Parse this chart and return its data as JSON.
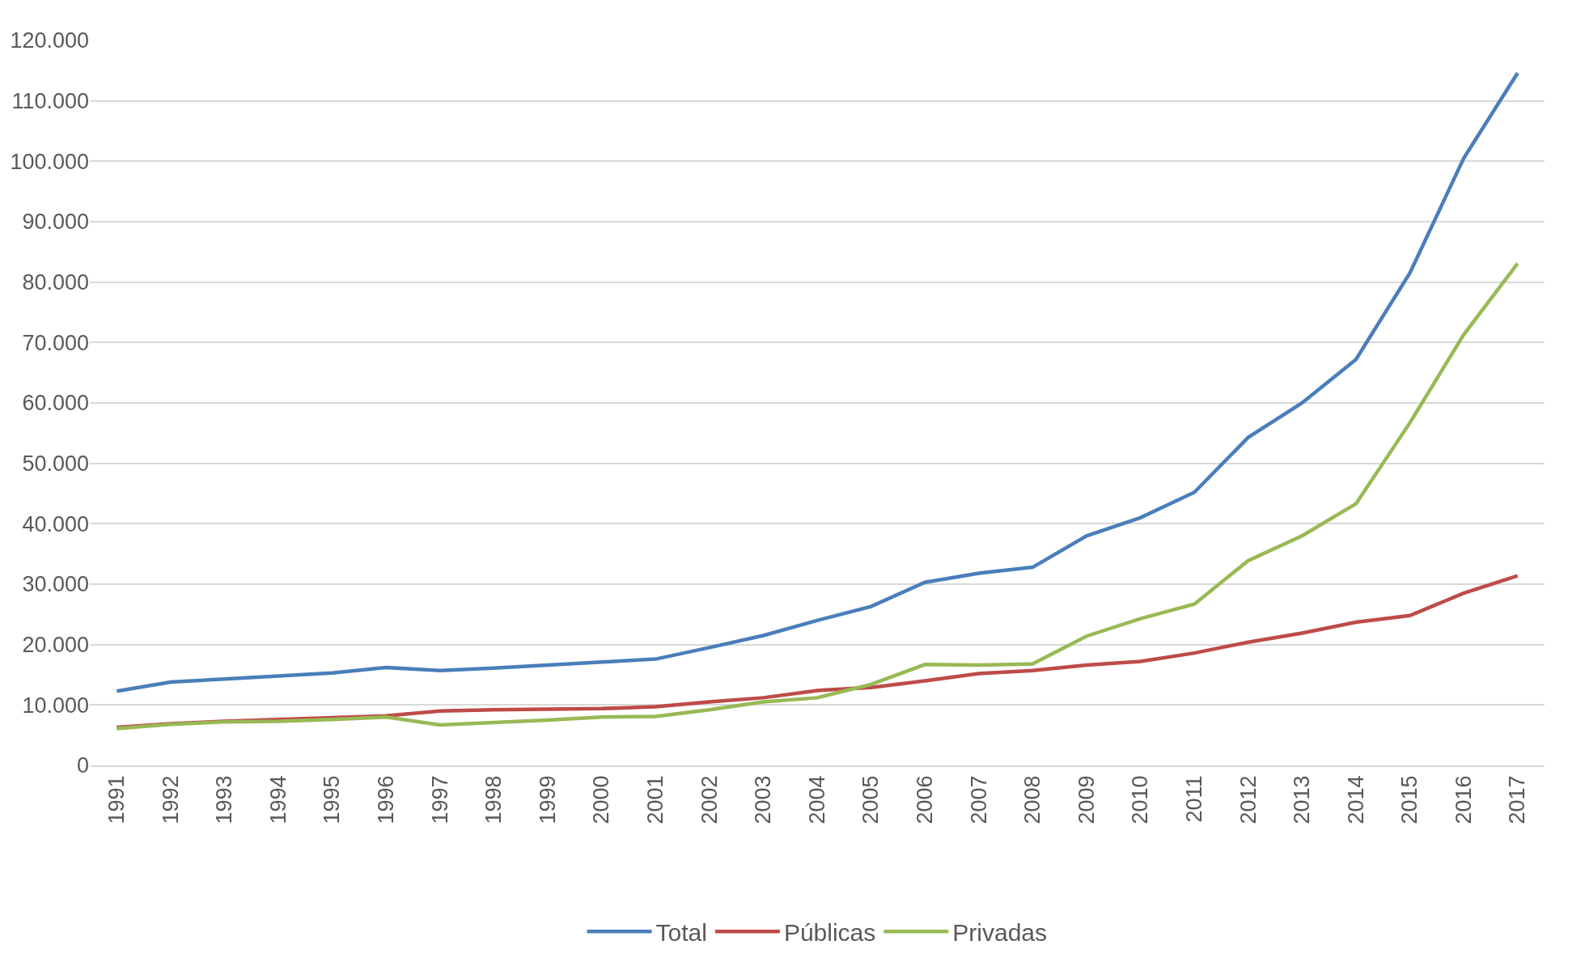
{
  "chart_data": {
    "type": "line",
    "categories": [
      "1991",
      "1992",
      "1993",
      "1994",
      "1995",
      "1996",
      "1997",
      "1998",
      "1999",
      "2000",
      "2001",
      "2002",
      "2003",
      "2004",
      "2005",
      "2006",
      "2007",
      "2008",
      "2009",
      "2010",
      "2011",
      "2012",
      "2013",
      "2014",
      "2015",
      "2016",
      "2017"
    ],
    "series": [
      {
        "name": "Total",
        "color": "#4a7ebb",
        "values": [
          12300,
          13800,
          14300,
          14800,
          15300,
          16200,
          15700,
          16100,
          16600,
          17100,
          17600,
          19500,
          21500,
          24000,
          26300,
          30300,
          31800,
          32800,
          38000,
          41000,
          45200,
          54300,
          60000,
          67200,
          81500,
          100500,
          114600
        ]
      },
      {
        "name": "Públicas",
        "color": "#be4b48",
        "values": [
          6300,
          6900,
          7300,
          7600,
          7900,
          8200,
          9000,
          9200,
          9300,
          9400,
          9700,
          10500,
          11200,
          12400,
          12900,
          14000,
          15200,
          15700,
          16600,
          17200,
          18600,
          20400,
          21900,
          23700,
          24800,
          28500,
          31400
        ]
      },
      {
        "name": "Privadas",
        "color": "#98b954",
        "values": [
          6100,
          6800,
          7200,
          7300,
          7600,
          8000,
          6700,
          7100,
          7500,
          8000,
          8100,
          9200,
          10500,
          11200,
          13400,
          16700,
          16600,
          16800,
          21400,
          24300,
          26700,
          33900,
          38000,
          43300,
          56700,
          71300,
          83100
        ]
      }
    ],
    "ylim": [
      0,
      120000
    ],
    "yticks": [
      0,
      {
        "value": 10000,
        "label": "10.000"
      },
      {
        "value": 20000,
        "label": "20.000"
      },
      {
        "value": 30000,
        "label": "30.000"
      },
      {
        "value": 40000,
        "label": "40.000"
      },
      {
        "value": 50000,
        "label": "50.000"
      },
      {
        "value": 60000,
        "label": "60.000"
      },
      {
        "value": 70000,
        "label": "70.000"
      },
      {
        "value": 80000,
        "label": "80.000"
      },
      {
        "value": 90000,
        "label": "90.000"
      },
      {
        "value": 100000,
        "label": "100.000"
      },
      {
        "value": 110000,
        "label": "110.000"
      },
      {
        "value": 120000,
        "label": "120.000"
      }
    ],
    "grid": "y",
    "legend": "bottom",
    "marker": "none",
    "line_style": "solid"
  }
}
